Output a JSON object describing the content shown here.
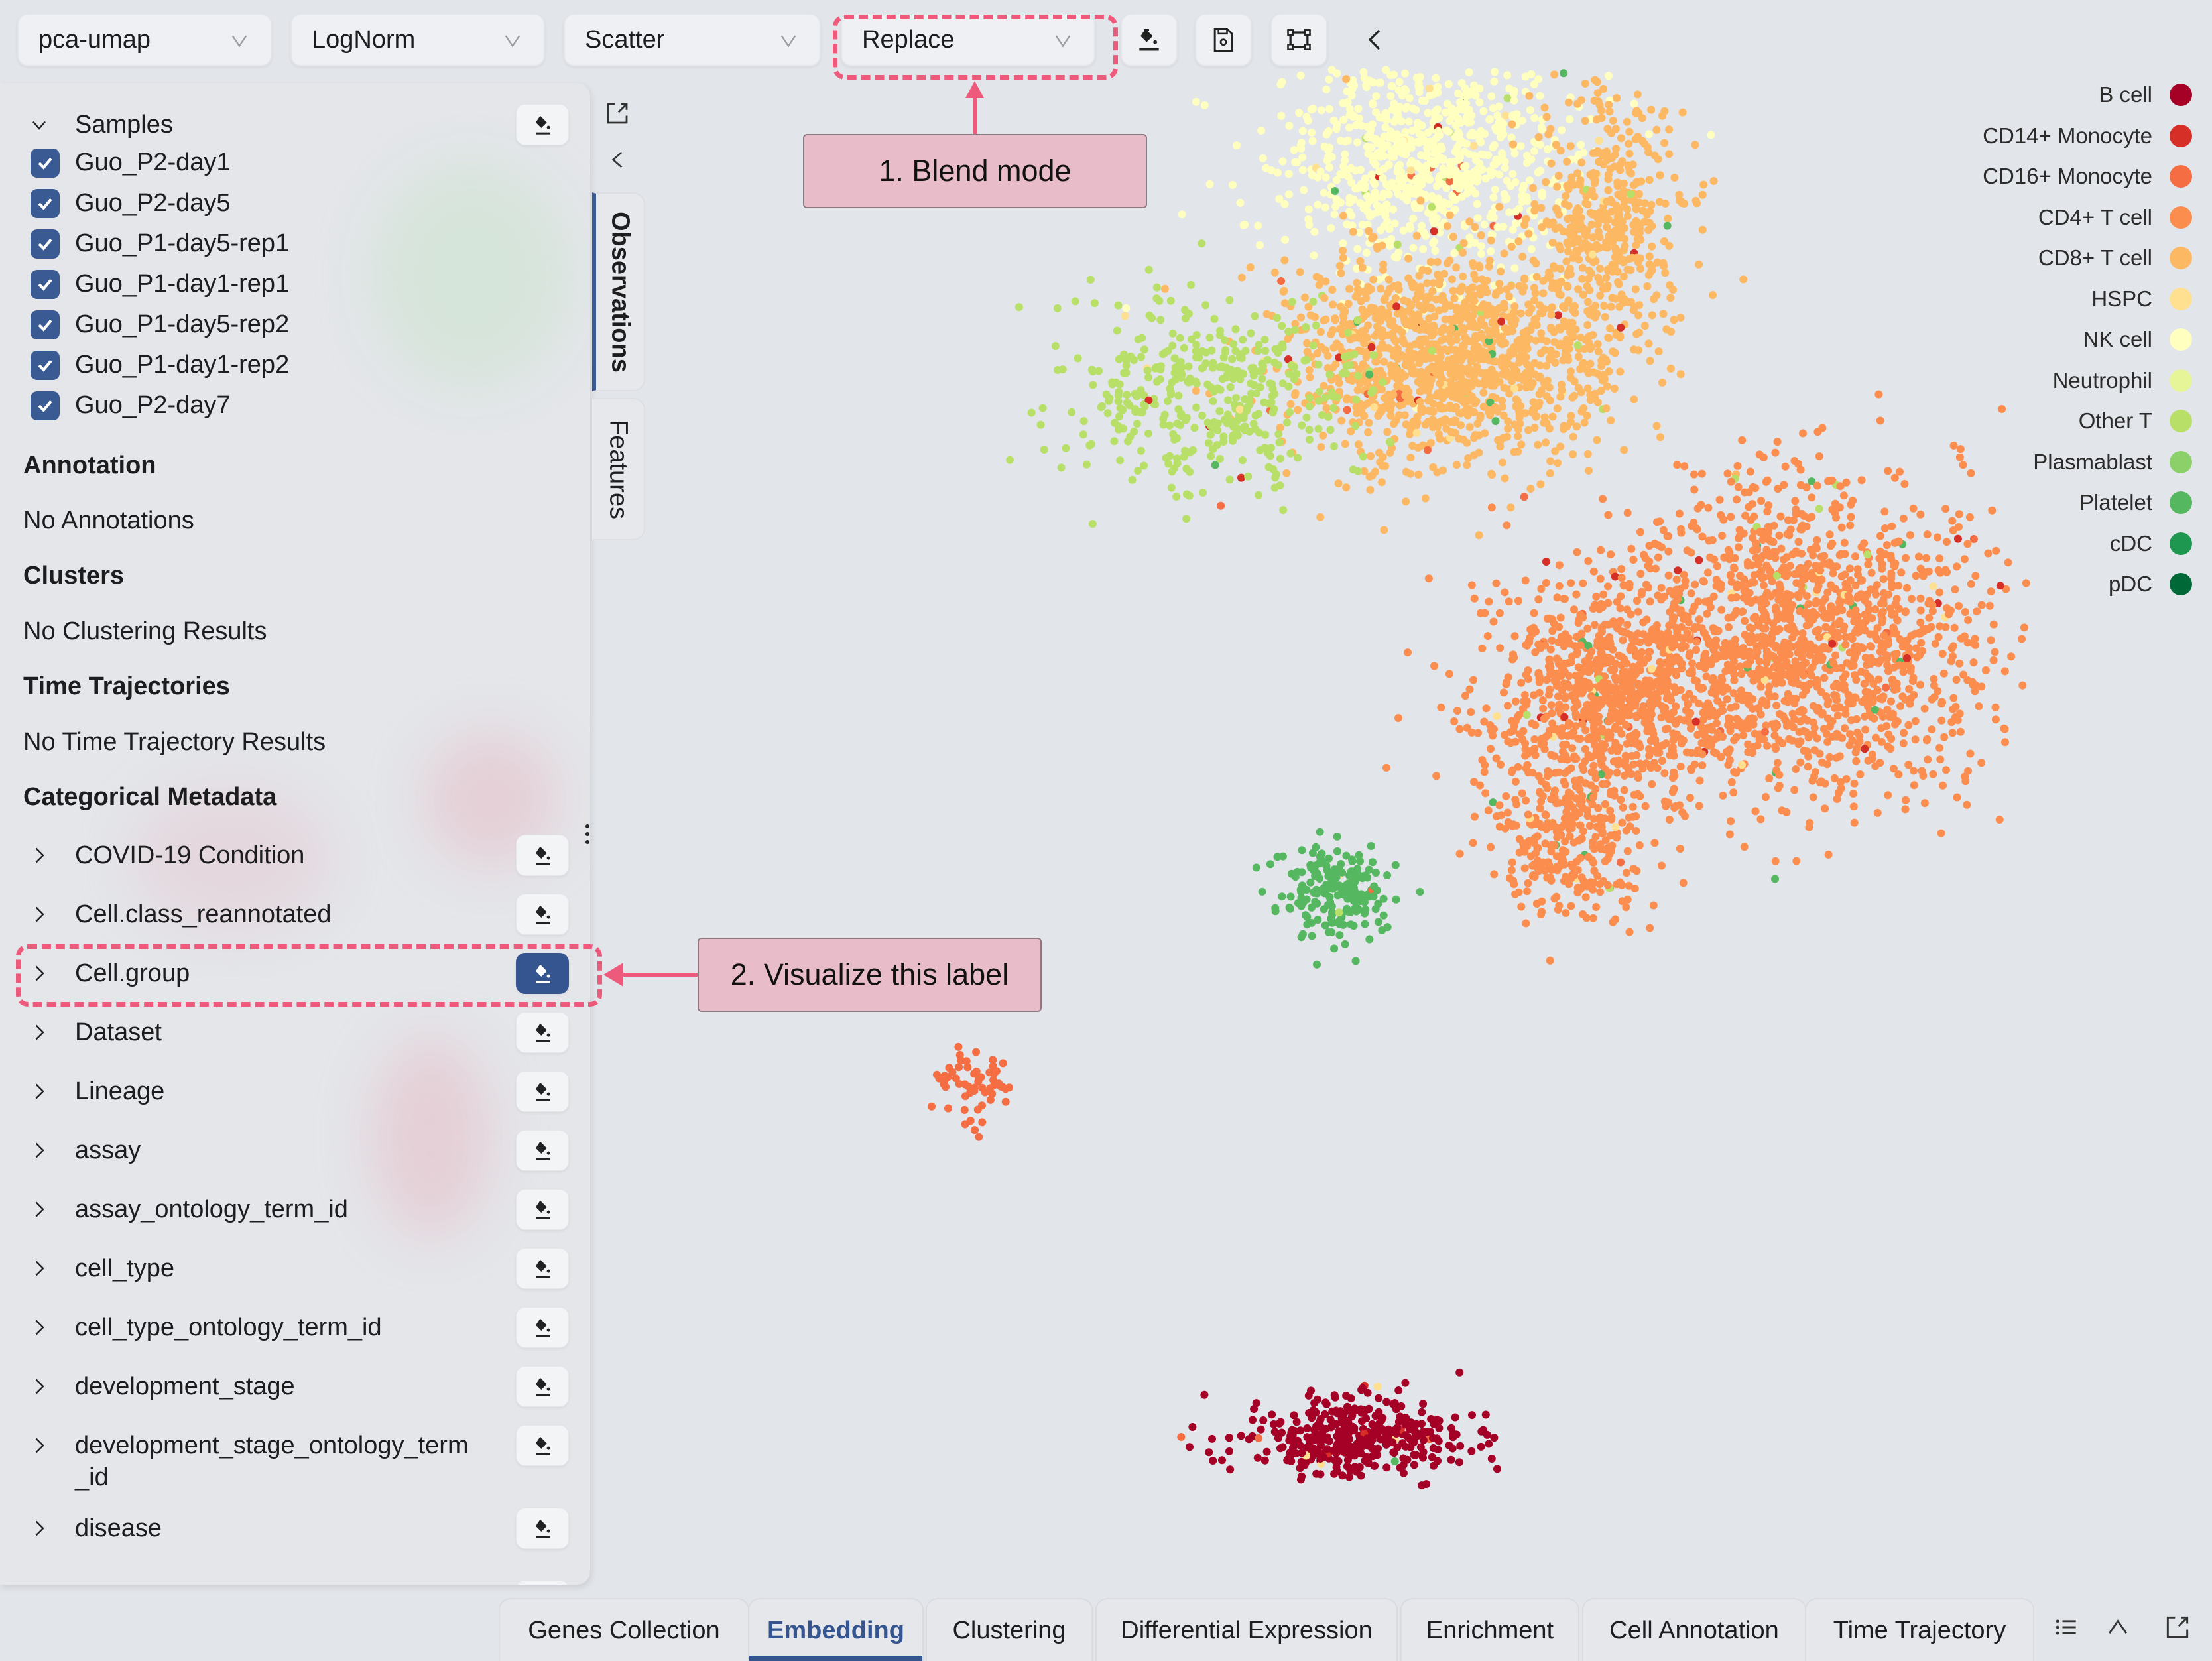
{
  "toolbar": {
    "embedding_select": "pca-umap",
    "normalization_select": "LogNorm",
    "plot_type_select": "Scatter",
    "blend_mode_select": "Replace",
    "icons": [
      "paint-bucket-icon",
      "save-icon",
      "bounding-box-icon",
      "chevron-left-icon"
    ]
  },
  "side_panel": {
    "samples": {
      "title": "Samples",
      "items": [
        {
          "label": "Guo_P2-day1",
          "checked": true
        },
        {
          "label": "Guo_P2-day5",
          "checked": true
        },
        {
          "label": "Guo_P1-day5-rep1",
          "checked": true
        },
        {
          "label": "Guo_P1-day1-rep1",
          "checked": true
        },
        {
          "label": "Guo_P1-day5-rep2",
          "checked": true
        },
        {
          "label": "Guo_P1-day1-rep2",
          "checked": true
        },
        {
          "label": "Guo_P2-day7",
          "checked": true
        }
      ]
    },
    "annotation": {
      "title": "Annotation",
      "empty": "No Annotations"
    },
    "clusters": {
      "title": "Clusters",
      "empty": "No Clustering Results"
    },
    "time_trajectories": {
      "title": "Time Trajectories",
      "empty": "No Time Trajectory Results"
    },
    "categorical_metadata": {
      "title": "Categorical Metadata",
      "items": [
        {
          "label": "COVID-19 Condition",
          "active": false
        },
        {
          "label": "Cell.class_reannotated",
          "active": false
        },
        {
          "label": "Cell.group",
          "active": true
        },
        {
          "label": "Dataset",
          "active": false
        },
        {
          "label": "Lineage",
          "active": false
        },
        {
          "label": "assay",
          "active": false
        },
        {
          "label": "assay_ontology_term_id",
          "active": false
        },
        {
          "label": "cell_type",
          "active": false
        },
        {
          "label": "cell_type_ontology_term_id",
          "active": false
        },
        {
          "label": "development_stage",
          "active": false
        },
        {
          "label": "development_stage_ontology_term",
          "label_cont": "_id",
          "active": false
        },
        {
          "label": "disease",
          "active": false
        }
      ]
    }
  },
  "vertical_tabs": [
    {
      "label": "Observations",
      "active": true
    },
    {
      "label": "Features",
      "active": false
    }
  ],
  "annotations": {
    "callout_1": "1. Blend mode",
    "callout_2": "2. Visualize this label",
    "color": "#ee5a7c"
  },
  "chart_data": {
    "type": "scatter",
    "title": "",
    "xlabel": "",
    "ylabel": "",
    "grid": false,
    "legend_placement": "top-right",
    "legend": [
      {
        "name": "B cell",
        "color": "#a50026"
      },
      {
        "name": "CD14+ Monocyte",
        "color": "#d62f27"
      },
      {
        "name": "CD16+ Monocyte",
        "color": "#f46d43"
      },
      {
        "name": "CD4+ T cell",
        "color": "#fb8d4f"
      },
      {
        "name": "CD8+ T cell",
        "color": "#fdb863"
      },
      {
        "name": "HSPC",
        "color": "#fee090"
      },
      {
        "name": "NK cell",
        "color": "#ffffbf"
      },
      {
        "name": "Neutrophil",
        "color": "#e6f598"
      },
      {
        "name": "Other T",
        "color": "#b8e068"
      },
      {
        "name": "Plasmablast",
        "color": "#8cd06a"
      },
      {
        "name": "Platelet",
        "color": "#55b760"
      },
      {
        "name": "cDC",
        "color": "#1e9850"
      },
      {
        "name": "pDC",
        "color": "#006837"
      }
    ],
    "clusters": [
      {
        "category": "NK cell",
        "cx": 0.0,
        "cy": 0.88,
        "sx": 0.09,
        "sy": 0.08,
        "n": 900
      },
      {
        "category": "CD8+ T cell",
        "cx": 0.02,
        "cy": 0.62,
        "sx": 0.1,
        "sy": 0.07,
        "n": 1300
      },
      {
        "category": "CD8+ T cell",
        "cx": 0.22,
        "cy": 0.8,
        "sx": 0.05,
        "sy": 0.08,
        "n": 450
      },
      {
        "category": "Other T",
        "cx": -0.28,
        "cy": 0.57,
        "sx": 0.09,
        "sy": 0.06,
        "n": 420
      },
      {
        "category": "CD4+ T cell",
        "cx": 0.47,
        "cy": 0.26,
        "sx": 0.11,
        "sy": 0.1,
        "n": 1500
      },
      {
        "category": "CD4+ T cell",
        "cx": 0.22,
        "cy": 0.18,
        "sx": 0.08,
        "sy": 0.07,
        "n": 900
      },
      {
        "category": "CD4+ T cell",
        "cx": 0.17,
        "cy": 0.0,
        "sx": 0.05,
        "sy": 0.05,
        "n": 300
      },
      {
        "category": "cDC / Platelet",
        "cx": -0.12,
        "cy": -0.07,
        "sx": 0.035,
        "sy": 0.03,
        "n": 200
      },
      {
        "category": "CD16+ Monocyte",
        "cx": -0.58,
        "cy": -0.33,
        "sx": 0.025,
        "sy": 0.025,
        "n": 60
      },
      {
        "category": "B cell",
        "cx": -0.1,
        "cy": -0.78,
        "sx": 0.07,
        "sy": 0.025,
        "n": 380
      }
    ],
    "xlim": [
      -0.75,
      0.75
    ],
    "ylim": [
      -1,
      1
    ]
  },
  "bottom_tabs": [
    {
      "label": "Genes Collection",
      "active": false
    },
    {
      "label": "Embedding",
      "active": true
    },
    {
      "label": "Clustering",
      "active": false
    },
    {
      "label": "Differential Expression",
      "active": false
    },
    {
      "label": "Enrichment",
      "active": false
    },
    {
      "label": "Cell Annotation",
      "active": false
    },
    {
      "label": "Time Trajectory",
      "active": false
    }
  ]
}
